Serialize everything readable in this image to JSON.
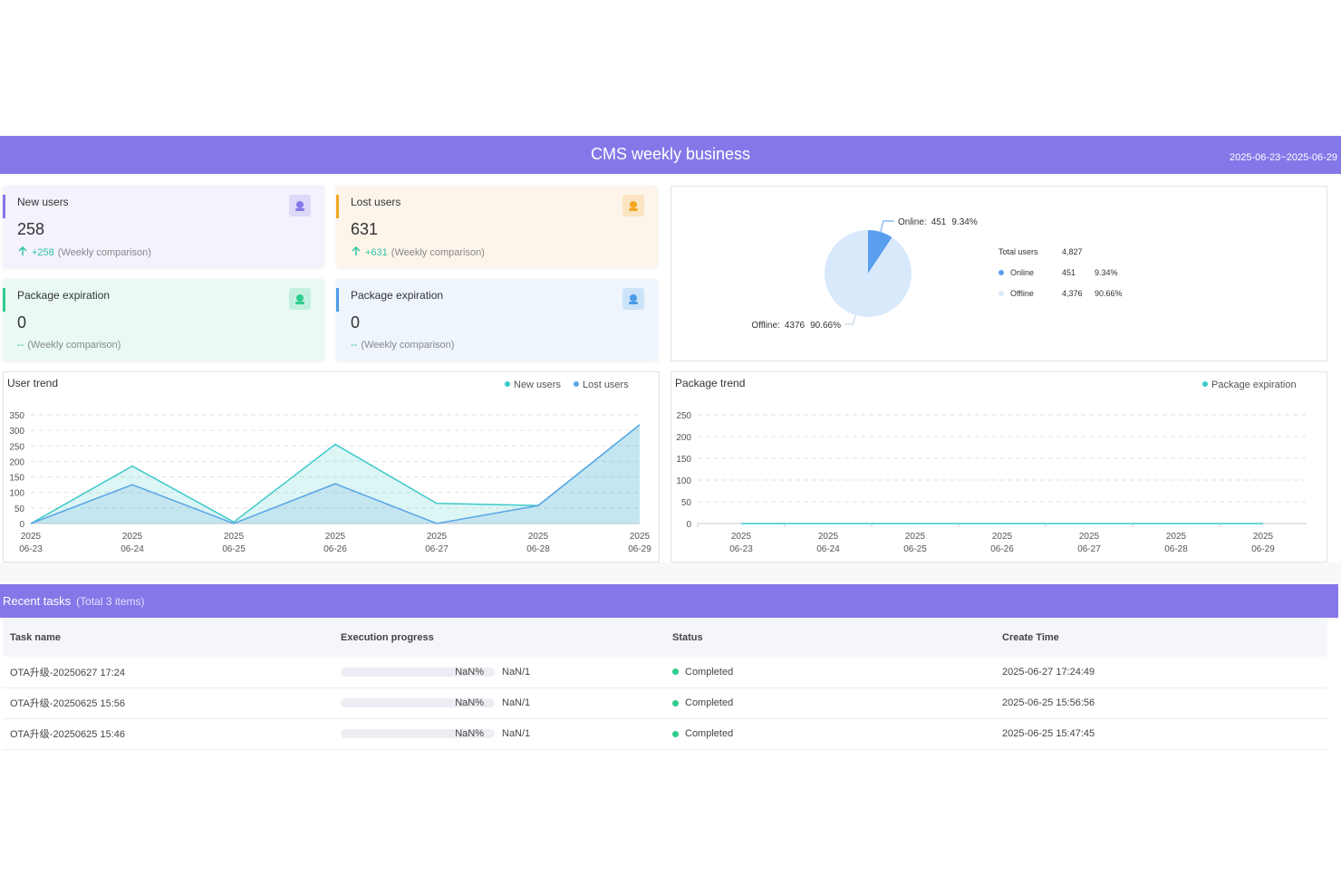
{
  "header": {
    "title": "CMS weekly business",
    "date_range": "2025-06-23~2025-06-29"
  },
  "cards": [
    {
      "label": "New users",
      "value": 258,
      "change": "+258",
      "comparison": "(Weekly comparison)",
      "color": "#8478e8",
      "bg": "#f4f2fd"
    },
    {
      "label": "Lost users",
      "value": 631,
      "change": "+631",
      "comparison": "(Weekly comparison)",
      "color": "#f5a623",
      "bg": "#fdf5ea"
    },
    {
      "label": "Package expiration",
      "value": 0,
      "change": "--",
      "comparison": "(Weekly comparison)",
      "color": "#2ecc8f",
      "bg": "#eafaf3"
    },
    {
      "label": "Package expiration",
      "value": 0,
      "change": "--",
      "comparison": "(Weekly comparison)",
      "color": "#4a9be8",
      "bg": "#eef5fd"
    }
  ],
  "chart_data": [
    {
      "type": "pie",
      "categories": [
        "Online",
        "Offline"
      ],
      "callout_labels": [
        "Online:",
        "Offline:"
      ],
      "values": [
        451,
        4376
      ],
      "value_labels": [
        "451",
        "4,376"
      ],
      "percent_labels": [
        "9.34%",
        "90.66%"
      ],
      "colors": [
        "#5a9ef0",
        "#d8e9fc"
      ],
      "total_label": "Total users",
      "total": 4827,
      "total_value_label": "4,827"
    },
    {
      "type": "line",
      "title": "User trend",
      "categories": [
        [
          "2025",
          "06-23"
        ],
        [
          "2025",
          "06-24"
        ],
        [
          "2025",
          "06-25"
        ],
        [
          "2025",
          "06-26"
        ],
        [
          "2025",
          "06-27"
        ],
        [
          "2025",
          "06-28"
        ],
        [
          "2025",
          "06-29"
        ]
      ],
      "series": [
        {
          "name": "New users",
          "color": "#3cc9c9",
          "values": [
            0,
            185,
            5,
            255,
            65,
            58,
            318
          ]
        },
        {
          "name": "Lost users",
          "color": "#5aa5e6",
          "values": [
            0,
            125,
            0,
            128,
            0,
            58,
            318
          ]
        }
      ],
      "ylim": [
        0,
        350
      ],
      "yticks": [
        0,
        50,
        100,
        150,
        200,
        250,
        300,
        350
      ],
      "grid": true,
      "legend": "top-right"
    },
    {
      "type": "line",
      "title": "Package trend",
      "categories": [
        [
          "2025",
          "06-23"
        ],
        [
          "2025",
          "06-24"
        ],
        [
          "2025",
          "06-25"
        ],
        [
          "2025",
          "06-26"
        ],
        [
          "2025",
          "06-27"
        ],
        [
          "2025",
          "06-28"
        ],
        [
          "2025",
          "06-29"
        ]
      ],
      "series": [
        {
          "name": "Package expiration",
          "color": "#3cc9c9",
          "values": [
            0,
            0,
            0,
            0,
            0,
            0,
            0
          ]
        }
      ],
      "ylim": [
        0,
        250
      ],
      "yticks": [
        0,
        50,
        100,
        150,
        200,
        250
      ],
      "grid": true,
      "legend": "top-right"
    }
  ],
  "tasks": {
    "title": "Recent tasks",
    "subtitle": "(Total 3 items)",
    "columns": [
      "Task name",
      "Execution progress",
      "Status",
      "Create Time"
    ],
    "rows": [
      {
        "name": "OTA升级-20250627 17:24",
        "percent": "NaN%",
        "count": "NaN/1",
        "status": "Completed",
        "time": "2025-06-27 17:24:49"
      },
      {
        "name": "OTA升级-20250625 15:56",
        "percent": "NaN%",
        "count": "NaN/1",
        "status": "Completed",
        "time": "2025-06-25 15:56:56"
      },
      {
        "name": "OTA升级-20250625 15:46",
        "percent": "NaN%",
        "count": "NaN/1",
        "status": "Completed",
        "time": "2025-06-25 15:47:45"
      }
    ]
  }
}
